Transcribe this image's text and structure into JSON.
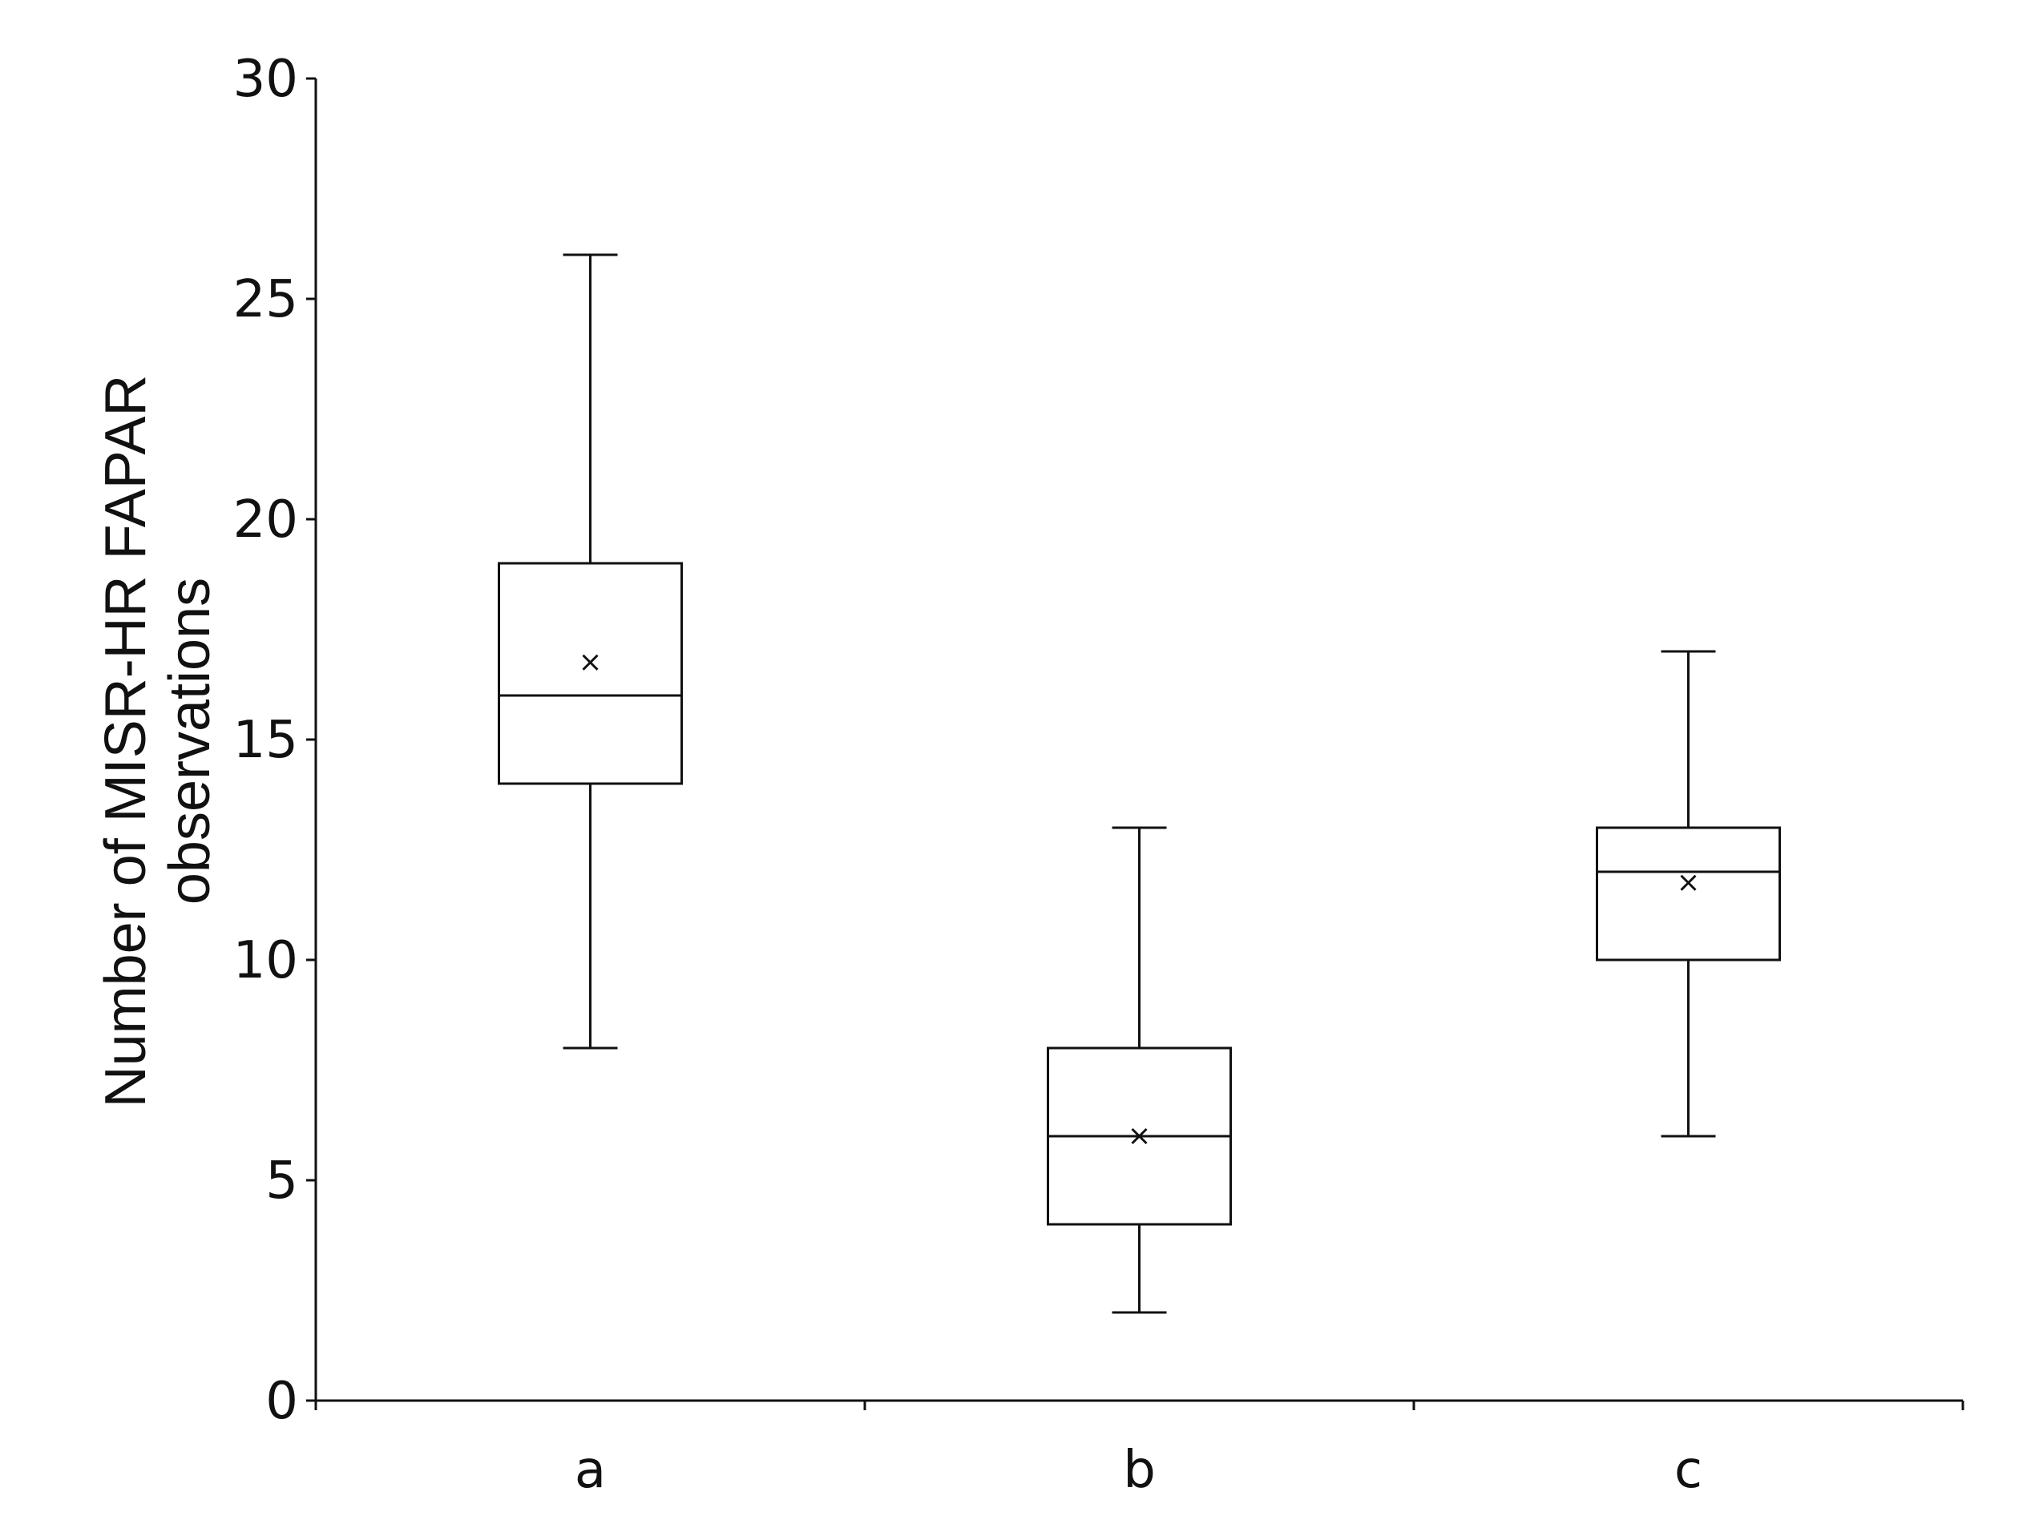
{
  "chart_data": {
    "type": "box",
    "title": "",
    "xlabel": "",
    "ylabel_lines": [
      "Number of MISR-HR FAPAR",
      "observations"
    ],
    "ylim": [
      0,
      30
    ],
    "yticks": [
      "0",
      "5",
      "10",
      "15",
      "20",
      "25",
      "30"
    ],
    "grid": false,
    "categories": [
      "a",
      "b",
      "c"
    ],
    "boxes": [
      {
        "category": "a",
        "min": 8,
        "q1": 14,
        "median": 16,
        "q3": 19,
        "max": 26,
        "mean": 16.75
      },
      {
        "category": "b",
        "min": 2,
        "q1": 4,
        "median": 6,
        "q3": 8,
        "max": 13,
        "mean": 6
      },
      {
        "category": "c",
        "min": 6,
        "q1": 10,
        "median": 12,
        "q3": 13,
        "max": 17,
        "mean": 11.75
      }
    ],
    "colors": {
      "stroke": "#111111",
      "box_fill": "#ffffff"
    }
  }
}
